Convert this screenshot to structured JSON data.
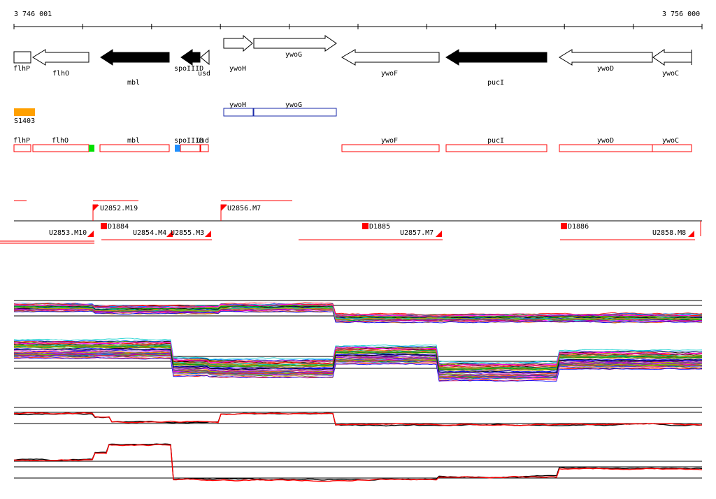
{
  "ruler": {
    "start_label": "3 746 001",
    "end_label": "3 756 000"
  },
  "colors": {
    "gene_outline": "#000000",
    "gene_fill_solid": "#000000",
    "orange_block": "#ffa000",
    "blue_box": "#1a2aa8",
    "red": "#ff0000",
    "green_mark": "#00e000",
    "blue_mark": "#1e90ff",
    "ref_line": "#000000"
  },
  "genes": [
    {
      "label": "flhP",
      "dir": "box",
      "solid": false
    },
    {
      "label": "flhO",
      "dir": "left",
      "solid": false
    },
    {
      "label": "mbl",
      "dir": "left",
      "solid": true
    },
    {
      "label": "spoIIID",
      "dir": "left",
      "solid": true
    },
    {
      "label": "usd",
      "dir": "left",
      "solid": false
    },
    {
      "label": "ywoH",
      "dir": "right",
      "solid": false
    },
    {
      "label": "ywoG",
      "dir": "right",
      "solid": false
    },
    {
      "label": "ywoF",
      "dir": "left",
      "solid": false
    },
    {
      "label": "pucI",
      "dir": "left",
      "solid": true
    },
    {
      "label": "ywoD",
      "dir": "left",
      "solid": false
    },
    {
      "label": "ywoC",
      "dir": "left",
      "solid": false
    }
  ],
  "blue_boxes": [
    {
      "label": "ywoH"
    },
    {
      "label": "ywoG"
    }
  ],
  "orange_feature": {
    "label": "S1403"
  },
  "red_boxes": [
    {
      "label": "flhP"
    },
    {
      "label": "flhO"
    },
    {
      "label": "mbl"
    },
    {
      "label": "spoIIID"
    },
    {
      "label": "usd"
    },
    {
      "label": "ywoF"
    },
    {
      "label": "pucI"
    },
    {
      "label": "ywoD"
    },
    {
      "label": "ywoC"
    }
  ],
  "transcripts": [
    {
      "label": "U2852.M19"
    },
    {
      "label": "U2856.M7"
    },
    {
      "label": "U2853.M10"
    },
    {
      "label": "D1884"
    },
    {
      "label": "U2854.M4"
    },
    {
      "label": "U2855.M3"
    },
    {
      "label": "D1885"
    },
    {
      "label": "U2857.M7"
    },
    {
      "label": "D1886"
    },
    {
      "label": "U2858.M8"
    }
  ]
}
